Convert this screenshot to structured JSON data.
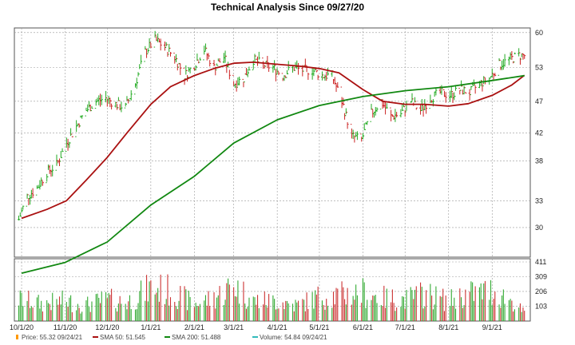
{
  "chart_data": {
    "type": "line",
    "title": "Technical Analysis Since 09/27/20",
    "xlabel": "",
    "ylabel": "",
    "x_ticks": [
      "10/1/20",
      "11/1/20",
      "12/1/20",
      "1/1/21",
      "2/1/21",
      "3/1/21",
      "4/1/21",
      "5/1/21",
      "6/1/21",
      "7/1/21",
      "8/1/21",
      "9/1/21"
    ],
    "price_axis": {
      "ticks": [
        30,
        33,
        38,
        42,
        47,
        53,
        60
      ],
      "scale": "log",
      "ylim": [
        27,
        61
      ]
    },
    "volume_axis": {
      "ticks": [
        103,
        206,
        309,
        411
      ],
      "ylim": [
        0,
        411
      ]
    },
    "grid": true,
    "legend_position": "bottom",
    "colors": {
      "price": "#22aa22",
      "price_down": "#cc2222",
      "sma50": "#aa1111",
      "sma200": "#118811",
      "volume_up": "#33aa33",
      "volume_down": "#cc3333",
      "grid": "#999999"
    },
    "legend": [
      {
        "label": "Price: 55.32  09/24/21",
        "color": "#ff9900"
      },
      {
        "label": "SMA 50: 51.545",
        "color": "#aa1111"
      },
      {
        "label": "SMA 200: 51.488",
        "color": "#118811"
      },
      {
        "label": "Volume: 54.84  09/24/21",
        "color": "#33bbbb"
      }
    ],
    "series": [
      {
        "name": "Price",
        "x": [
          "9/27/20",
          "10/5/20",
          "10/12/20",
          "10/19/20",
          "10/26/20",
          "11/2/20",
          "11/9/20",
          "11/16/20",
          "11/23/20",
          "11/30/20",
          "12/7/20",
          "12/14/20",
          "12/21/20",
          "12/28/20",
          "1/4/21",
          "1/11/21",
          "1/18/21",
          "1/25/21",
          "2/1/21",
          "2/8/21",
          "2/15/21",
          "2/22/21",
          "3/1/21",
          "3/8/21",
          "3/15/21",
          "3/22/21",
          "3/29/21",
          "4/5/21",
          "4/12/21",
          "4/19/21",
          "4/26/21",
          "5/3/21",
          "5/10/21",
          "5/17/21",
          "5/24/21",
          "5/31/21",
          "6/7/21",
          "6/14/21",
          "6/21/21",
          "6/28/21",
          "7/5/21",
          "7/12/21",
          "7/19/21",
          "7/26/21",
          "8/2/21",
          "8/9/21",
          "8/16/21",
          "8/23/21",
          "8/30/21",
          "9/6/21",
          "9/13/21",
          "9/20/21"
        ],
        "values": [
          30.0,
          33.5,
          34.5,
          36.5,
          37.5,
          40.5,
          43.0,
          45.5,
          47.0,
          47.5,
          46.5,
          46.0,
          50.0,
          56.0,
          58.5,
          57.0,
          55.0,
          51.5,
          53.5,
          56.5,
          53.0,
          55.0,
          50.0,
          51.0,
          54.5,
          53.5,
          53.0,
          51.5,
          53.0,
          52.5,
          52.5,
          51.5,
          51.5,
          47.0,
          41.5,
          41.0,
          45.0,
          47.0,
          44.5,
          45.0,
          47.0,
          45.5,
          47.5,
          48.5,
          48.0,
          49.0,
          48.5,
          50.0,
          51.0,
          53.5,
          54.5,
          55.32
        ]
      },
      {
        "name": "SMA 50",
        "x": [
          "10/1/20",
          "10/19/20",
          "11/2/20",
          "11/16/20",
          "12/1/20",
          "12/15/20",
          "1/1/21",
          "1/15/21",
          "2/1/21",
          "2/15/21",
          "3/1/21",
          "3/15/21",
          "4/1/21",
          "4/15/21",
          "5/1/21",
          "5/15/21",
          "6/1/21",
          "6/15/21",
          "7/1/21",
          "7/15/21",
          "8/1/21",
          "8/15/21",
          "9/1/21",
          "9/15/21",
          "9/24/21"
        ],
        "values": [
          31.0,
          32.0,
          33.0,
          35.5,
          38.5,
          42.0,
          46.5,
          49.5,
          51.5,
          52.8,
          53.8,
          54.0,
          53.6,
          53.3,
          52.8,
          52.0,
          49.0,
          47.0,
          46.5,
          46.5,
          46.2,
          46.6,
          48.0,
          49.8,
          51.545
        ]
      },
      {
        "name": "SMA 200",
        "x": [
          "10/1/20",
          "11/1/20",
          "12/1/20",
          "1/1/21",
          "2/1/21",
          "3/1/21",
          "4/1/21",
          "5/1/21",
          "6/1/21",
          "7/1/21",
          "8/1/21",
          "9/1/21",
          "9/24/21"
        ],
        "values": [
          25.5,
          26.5,
          28.5,
          32.5,
          36.0,
          40.5,
          44.0,
          46.3,
          47.8,
          48.8,
          49.5,
          50.6,
          51.488
        ]
      },
      {
        "name": "Volume",
        "x": [
          "10/1/20",
          "10/15/20",
          "11/1/20",
          "11/15/20",
          "12/1/20",
          "12/15/20",
          "1/1/21",
          "1/15/21",
          "2/1/21",
          "2/15/21",
          "3/1/21",
          "3/15/21",
          "4/1/21",
          "4/15/21",
          "5/1/21",
          "5/15/21",
          "6/1/21",
          "6/15/21",
          "7/1/21",
          "7/15/21",
          "8/1/21",
          "8/15/21",
          "9/1/21",
          "9/15/21",
          "9/24/21"
        ],
        "values": [
          150,
          120,
          140,
          110,
          150,
          130,
          230,
          210,
          120,
          160,
          250,
          140,
          140,
          110,
          170,
          180,
          200,
          160,
          150,
          190,
          140,
          190,
          210,
          140,
          54.84
        ]
      }
    ]
  }
}
